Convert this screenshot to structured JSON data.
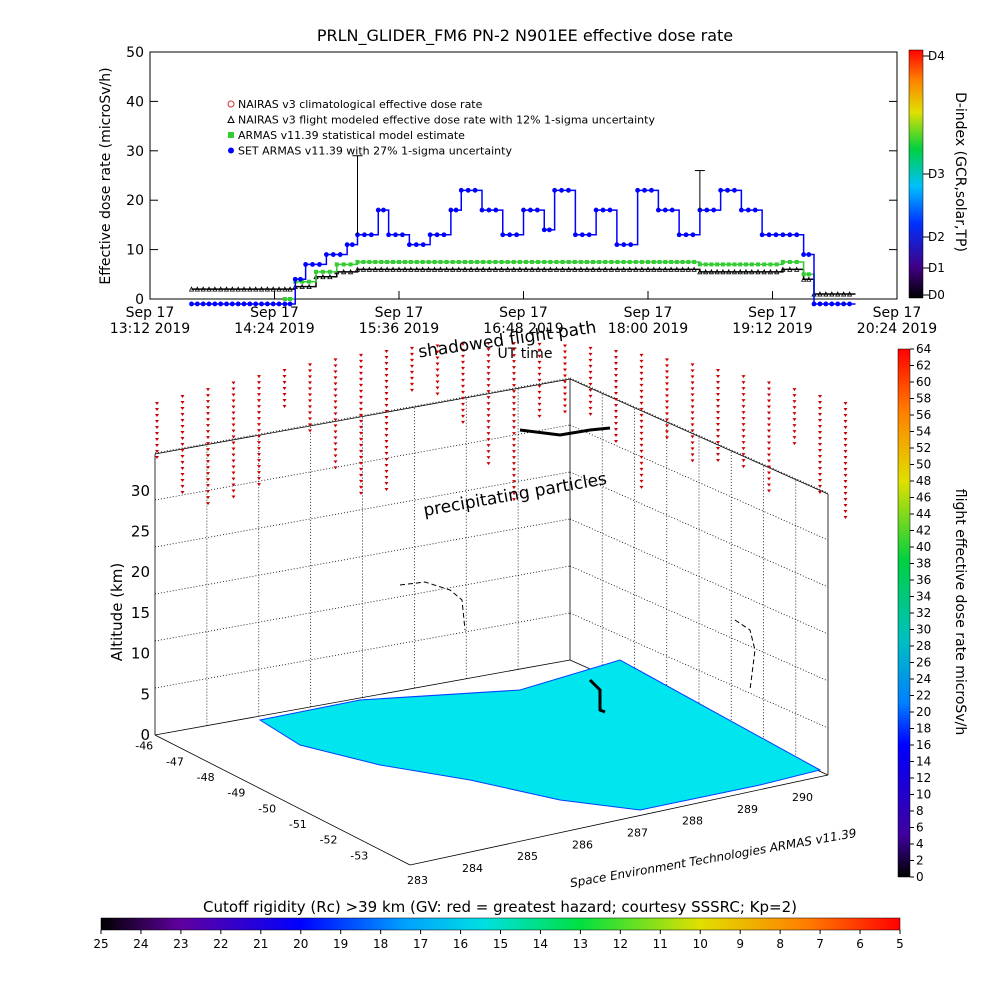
{
  "chart_data": [
    {
      "type": "line",
      "title": "PRLN_GLIDER_FM6 PN-2 N901EE effective dose rate",
      "ylabel": "Effective dose rate (microSv/h)",
      "ylim": [
        0,
        50
      ],
      "yticks": [
        "0",
        "10",
        "20",
        "30",
        "40",
        "50"
      ],
      "xlabel": "UT time",
      "xticks": [
        {
          "date": "Sep 17",
          "time": "13:12 2019"
        },
        {
          "date": "Sep 17",
          "time": "14:24 2019"
        },
        {
          "date": "Sep 17",
          "time": "15:36 2019"
        },
        {
          "date": "Sep 17",
          "time": "16:48 2019"
        },
        {
          "date": "Sep 17",
          "time": "18:00 2019"
        },
        {
          "date": "Sep 17",
          "time": "19:12 2019"
        },
        {
          "date": "Sep 17",
          "time": "20:24 2019"
        }
      ],
      "legend": [
        {
          "label": "NAIRAS v3 climatological effective dose rate",
          "color": "#d03030"
        },
        {
          "label": "NAIRAS v3 flight modeled effective dose rate with 12% 1-sigma uncertainty",
          "color": "#000000"
        },
        {
          "label": "ARMAS v11.39 statistical model estimate",
          "color": "#33cc33"
        },
        {
          "label": "SET ARMAS v11.39 with 27% 1-sigma uncertainty",
          "color": "#0000ff"
        }
      ],
      "legend_position": "top-left",
      "x_range_minutes": [
        "13:12",
        "20:24"
      ],
      "series": [
        {
          "name": "NAIRAS v3 flight modeled effective dose rate with 12% 1-sigma uncertainty",
          "color": "#000000",
          "points": [
            [
              "13:36",
              2
            ],
            [
              "14:30",
              2
            ],
            [
              "14:36",
              2.5
            ],
            [
              "14:48",
              4.5
            ],
            [
              "15:00",
              5.5
            ],
            [
              "15:12",
              6
            ],
            [
              "16:00",
              6
            ],
            [
              "17:00",
              6
            ],
            [
              "18:00",
              6
            ],
            [
              "18:30",
              5.5
            ],
            [
              "19:00",
              5.5
            ],
            [
              "19:18",
              6
            ],
            [
              "19:30",
              4
            ],
            [
              "19:36",
              1
            ],
            [
              "20:00",
              1
            ]
          ]
        },
        {
          "name": "ARMAS v11.39 statistical model estimate",
          "color": "#33cc33",
          "points": [
            [
              "14:30",
              0
            ],
            [
              "14:36",
              3.5
            ],
            [
              "14:48",
              5.5
            ],
            [
              "15:00",
              7
            ],
            [
              "15:12",
              7.5
            ],
            [
              "16:00",
              7.5
            ],
            [
              "17:00",
              7.5
            ],
            [
              "18:00",
              7.5
            ],
            [
              "18:30",
              7
            ],
            [
              "19:00",
              7
            ],
            [
              "19:18",
              7.5
            ],
            [
              "19:30",
              5
            ],
            [
              "19:36",
              0
            ]
          ]
        },
        {
          "name": "SET ARMAS v11.39 with 27% 1-sigma uncertainty",
          "color": "#0000ff",
          "points": [
            [
              "13:36",
              -1
            ],
            [
              "14:30",
              -1
            ],
            [
              "14:36",
              4
            ],
            [
              "14:42",
              7
            ],
            [
              "14:54",
              9
            ],
            [
              "15:06",
              11
            ],
            [
              "15:12",
              13
            ],
            [
              "15:24",
              18
            ],
            [
              "15:30",
              13
            ],
            [
              "15:42",
              11
            ],
            [
              "15:54",
              13
            ],
            [
              "16:06",
              18
            ],
            [
              "16:12",
              22
            ],
            [
              "16:24",
              18
            ],
            [
              "16:36",
              13
            ],
            [
              "16:48",
              18
            ],
            [
              "17:00",
              14
            ],
            [
              "17:06",
              22
            ],
            [
              "17:18",
              13
            ],
            [
              "17:30",
              18
            ],
            [
              "17:42",
              11
            ],
            [
              "17:54",
              22
            ],
            [
              "18:06",
              18
            ],
            [
              "18:18",
              13
            ],
            [
              "18:30",
              18
            ],
            [
              "18:42",
              22
            ],
            [
              "18:54",
              18
            ],
            [
              "19:06",
              13
            ],
            [
              "19:18",
              13
            ],
            [
              "19:30",
              9
            ],
            [
              "19:36",
              -1
            ],
            [
              "20:00",
              -1
            ]
          ]
        }
      ],
      "right_axis": {
        "label": "D-index (GCR,solar,TP)",
        "ticks": [
          "D0",
          "D1",
          "D2",
          "D3",
          "D4"
        ]
      }
    },
    {
      "type": "scatter",
      "title": "",
      "ylabel": "Altitude (km)",
      "zticks": [
        "0",
        "5",
        "10",
        "15",
        "20",
        "25",
        "30"
      ],
      "lat_ticks": [
        "-46",
        "-47",
        "-48",
        "-49",
        "-50",
        "-51",
        "-52",
        "-53"
      ],
      "lon_ticks": [
        "283",
        "284",
        "285",
        "286",
        "287",
        "288",
        "289",
        "290"
      ],
      "annotations": [
        "shadowed flight path",
        "precipitating particles"
      ],
      "credit": "Space Environment Technologies ARMAS v11.39",
      "right_colorbar": {
        "label": "flight effective dose rate microSv/h",
        "ticks": [
          "0",
          "2",
          "4",
          "6",
          "8",
          "10",
          "12",
          "14",
          "16",
          "18",
          "20",
          "22",
          "24",
          "26",
          "28",
          "30",
          "32",
          "34",
          "36",
          "38",
          "40",
          "42",
          "44",
          "46",
          "48",
          "50",
          "52",
          "54",
          "56",
          "58",
          "60",
          "62",
          "64"
        ]
      },
      "bottom_colorbar": {
        "title": "Cutoff rigidity (Rc) >39 km (GV: red = greatest hazard; courtesy SSSRC; Kp=2)",
        "ticks": [
          "25",
          "24",
          "23",
          "22",
          "21",
          "20",
          "19",
          "18",
          "17",
          "16",
          "15",
          "14",
          "13",
          "12",
          "11",
          "10",
          "9",
          "8",
          "7",
          "6",
          "5"
        ]
      }
    }
  ]
}
